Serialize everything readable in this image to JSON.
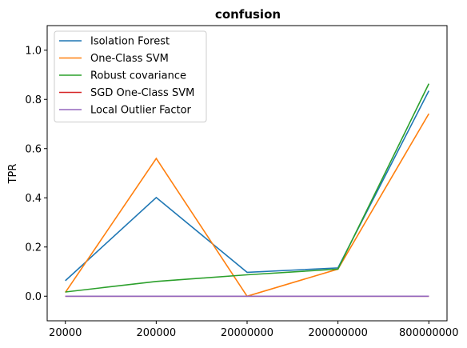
{
  "chart_data": {
    "type": "line",
    "title": "confusion",
    "xlabel": "",
    "ylabel": "TPR",
    "categories": [
      "20000",
      "200000",
      "20000000",
      "200000000",
      "800000000"
    ],
    "ylim": [
      -0.1,
      1.1
    ],
    "yticks": [
      0.0,
      0.2,
      0.4,
      0.6,
      0.8,
      1.0
    ],
    "ytick_labels": [
      "0.0",
      "0.2",
      "0.4",
      "0.6",
      "0.8",
      "1.0"
    ],
    "grid": false,
    "legend_position": "top-left",
    "series": [
      {
        "name": "Isolation Forest",
        "color": "#1f77b4",
        "values": [
          0.063,
          0.401,
          0.097,
          0.115,
          0.835
        ]
      },
      {
        "name": "One-Class SVM",
        "color": "#ff7f0e",
        "values": [
          0.015,
          0.56,
          0.0,
          0.11,
          0.742
        ]
      },
      {
        "name": "Robust covariance",
        "color": "#2ca02c",
        "values": [
          0.017,
          0.06,
          0.087,
          0.11,
          0.864
        ]
      },
      {
        "name": "SGD One-Class SVM",
        "color": "#d62728",
        "values": [
          0.0,
          0.0,
          0.0,
          0.0,
          0.0
        ]
      },
      {
        "name": "Local Outlier Factor",
        "color": "#9467bd",
        "values": [
          0.0,
          0.0,
          0.0,
          0.0,
          0.0
        ]
      }
    ]
  }
}
